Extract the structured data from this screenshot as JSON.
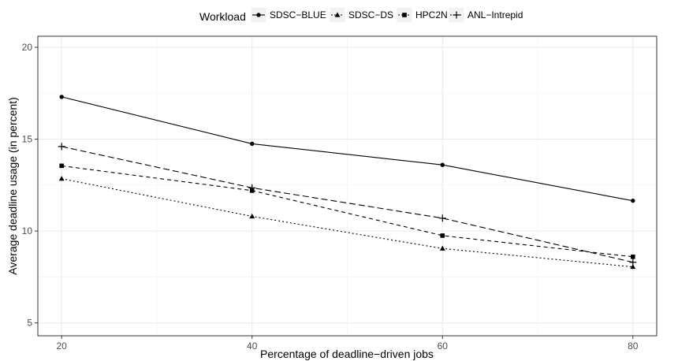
{
  "chart_data": {
    "type": "line",
    "xlabel": "Percentage of deadline−driven jobs",
    "ylabel": "Average deadline usage (in percent)",
    "x": [
      20,
      40,
      60,
      80
    ],
    "x_ticks": [
      "20",
      "40",
      "60",
      "80"
    ],
    "y_ticks": [
      "5",
      "10",
      "15",
      "20"
    ],
    "xlim": [
      17.5,
      82.5
    ],
    "ylim": [
      4.3,
      20.6
    ],
    "grid": true,
    "legend": {
      "title": "Workload",
      "placement": "top"
    },
    "series": [
      {
        "name": "SDSC−BLUE",
        "values": [
          17.3,
          14.75,
          13.6,
          11.65
        ],
        "marker": "circle",
        "dash": "solid"
      },
      {
        "name": "SDSC−DS",
        "values": [
          12.85,
          10.8,
          9.05,
          8.05
        ],
        "marker": "triangle",
        "dash": "dotted"
      },
      {
        "name": "HPC2N",
        "values": [
          13.55,
          12.2,
          9.75,
          8.6
        ],
        "marker": "square",
        "dash": "dashed"
      },
      {
        "name": "ANL−Intrepid",
        "values": [
          14.6,
          12.35,
          10.7,
          8.3
        ],
        "marker": "plus",
        "dash": "longdash"
      }
    ]
  }
}
